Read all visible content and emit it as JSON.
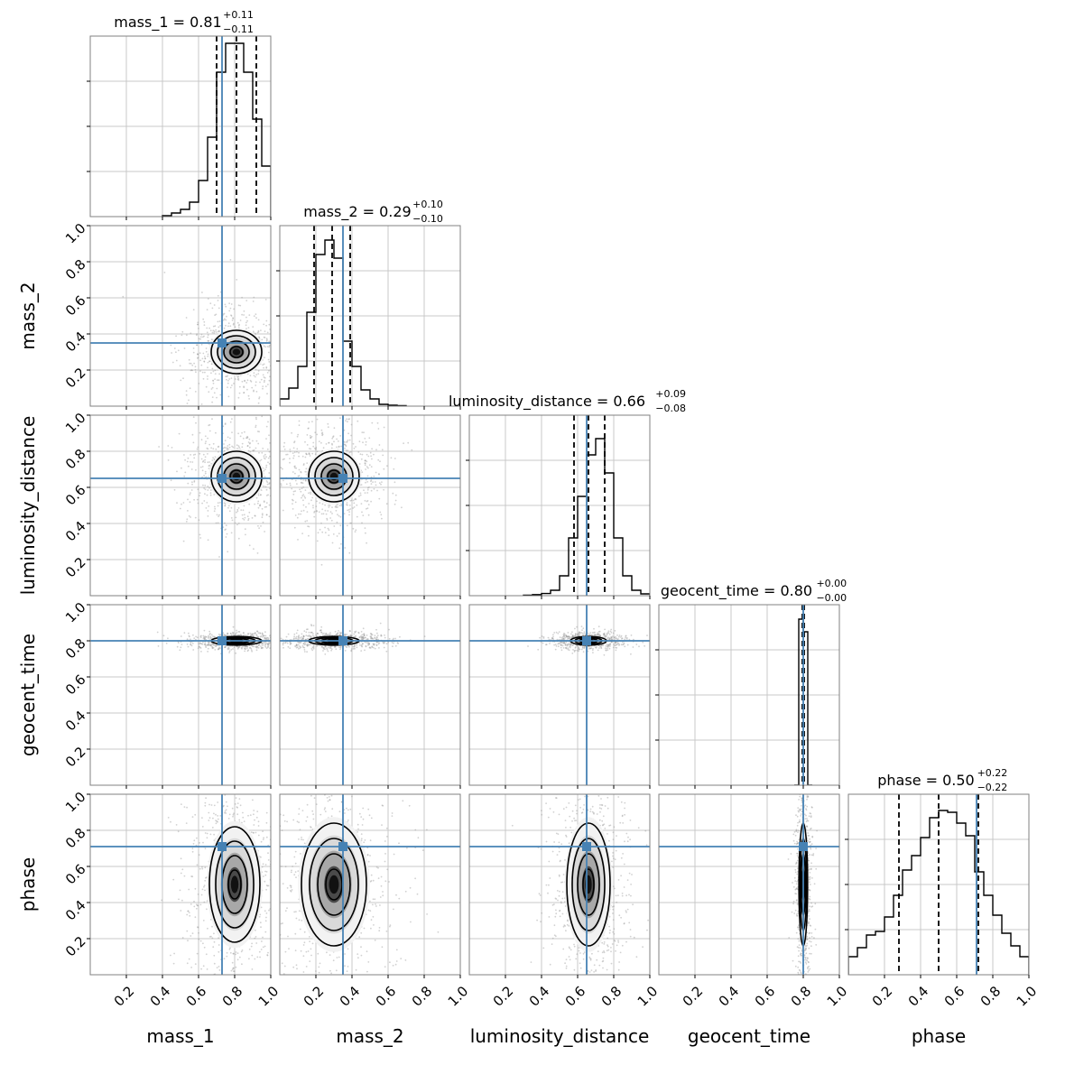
{
  "chart_data": {
    "type": "corner",
    "parameters": [
      "mass_1",
      "mass_2",
      "luminosity_distance",
      "geocent_time",
      "phase"
    ],
    "axis_range": [
      0.0,
      1.0
    ],
    "tick_values": [
      0.2,
      0.4,
      0.6,
      0.8,
      1.0
    ],
    "tick_labels": [
      "0.2",
      "0.4",
      "0.6",
      "0.8",
      "1.0"
    ],
    "grid": true,
    "colors": {
      "truth": "#4682b4",
      "hist": "#000000",
      "points": "#9a9a9a",
      "frame": "#808080",
      "grid": "#c8c8c8"
    },
    "truths": [
      0.73,
      0.35,
      0.65,
      0.8,
      0.71
    ],
    "medians": [
      0.81,
      0.29,
      0.66,
      0.8,
      0.5
    ],
    "titles": [
      {
        "name": "mass_1 = 0.81",
        "sup": "+0.11",
        "sub": "−0.11",
        "q16": 0.7,
        "q84": 0.92
      },
      {
        "name": "mass_2 = 0.29",
        "sup": "+0.10",
        "sub": "−0.10",
        "q16": 0.19,
        "q84": 0.39
      },
      {
        "name": "luminosity_distance = 0.66",
        "sup": "+0.09",
        "sub": "−0.08",
        "q16": 0.58,
        "q84": 0.75
      },
      {
        "name": "geocent_time = 0.80",
        "sup": "+0.00",
        "sub": "−0.00",
        "q16": 0.795,
        "q84": 0.805
      },
      {
        "name": "phase = 0.50",
        "sup": "+0.22",
        "sub": "−0.22",
        "q16": 0.28,
        "q84": 0.72
      }
    ],
    "histograms": [
      {
        "bins": [
          0.4,
          0.45,
          0.5,
          0.55,
          0.6,
          0.65,
          0.7,
          0.75,
          0.8,
          0.85,
          0.9,
          0.95,
          1.0
        ],
        "counts": [
          0.005,
          0.02,
          0.04,
          0.08,
          0.2,
          0.44,
          0.8,
          0.96,
          0.96,
          0.8,
          0.54,
          0.28
        ]
      },
      {
        "bins": [
          0.0,
          0.05,
          0.1,
          0.15,
          0.2,
          0.25,
          0.3,
          0.35,
          0.4,
          0.45,
          0.5,
          0.55,
          0.6,
          0.65,
          0.7
        ],
        "counts": [
          0.04,
          0.1,
          0.22,
          0.52,
          0.84,
          0.92,
          0.82,
          0.36,
          0.22,
          0.09,
          0.04,
          0.01,
          0.005,
          0.003
        ]
      },
      {
        "bins": [
          0.3,
          0.35,
          0.4,
          0.45,
          0.5,
          0.55,
          0.6,
          0.65,
          0.7,
          0.75,
          0.8,
          0.85,
          0.9,
          0.95,
          1.0
        ],
        "counts": [
          0.003,
          0.006,
          0.012,
          0.03,
          0.11,
          0.32,
          0.55,
          0.78,
          0.87,
          0.68,
          0.32,
          0.11,
          0.03,
          0.01
        ]
      },
      {
        "bins": [
          0.75,
          0.775,
          0.8,
          0.825,
          0.85
        ],
        "counts": [
          0.0,
          0.92,
          0.85,
          0.0
        ]
      },
      {
        "bins": [
          0.0,
          0.05,
          0.1,
          0.15,
          0.2,
          0.25,
          0.3,
          0.35,
          0.4,
          0.45,
          0.5,
          0.55,
          0.6,
          0.65,
          0.7,
          0.75,
          0.8,
          0.85,
          0.9,
          0.95,
          1.0
        ],
        "counts": [
          0.1,
          0.15,
          0.22,
          0.24,
          0.32,
          0.44,
          0.58,
          0.66,
          0.76,
          0.87,
          0.91,
          0.9,
          0.84,
          0.77,
          0.57,
          0.44,
          0.33,
          0.23,
          0.16,
          0.1
        ]
      }
    ],
    "contours": [
      {
        "row": 1,
        "col": 0,
        "cx": 0.81,
        "cy": 0.3,
        "sx": 0.07,
        "sy": 0.06
      },
      {
        "row": 2,
        "col": 0,
        "cx": 0.81,
        "cy": 0.66,
        "sx": 0.07,
        "sy": 0.07
      },
      {
        "row": 2,
        "col": 1,
        "cx": 0.3,
        "cy": 0.66,
        "sx": 0.07,
        "sy": 0.07
      },
      {
        "row": 3,
        "col": 0,
        "cx": 0.81,
        "cy": 0.8,
        "sx": 0.07,
        "sy": 0.012
      },
      {
        "row": 3,
        "col": 1,
        "cx": 0.3,
        "cy": 0.8,
        "sx": 0.07,
        "sy": 0.012
      },
      {
        "row": 3,
        "col": 2,
        "cx": 0.66,
        "cy": 0.8,
        "sx": 0.05,
        "sy": 0.012
      },
      {
        "row": 4,
        "col": 0,
        "cx": 0.8,
        "cy": 0.5,
        "sx": 0.07,
        "sy": 0.16
      },
      {
        "row": 4,
        "col": 1,
        "cx": 0.3,
        "cy": 0.5,
        "sx": 0.09,
        "sy": 0.17
      },
      {
        "row": 4,
        "col": 2,
        "cx": 0.66,
        "cy": 0.5,
        "sx": 0.06,
        "sy": 0.17
      },
      {
        "row": 4,
        "col": 3,
        "cx": 0.8,
        "cy": 0.5,
        "sx": 0.012,
        "sy": 0.17
      }
    ],
    "xlabels": [
      "mass_1",
      "mass_2",
      "luminosity_distance",
      "geocent_time",
      "phase"
    ],
    "ylabels": [
      "mass_2",
      "luminosity_distance",
      "geocent_time",
      "phase"
    ]
  }
}
